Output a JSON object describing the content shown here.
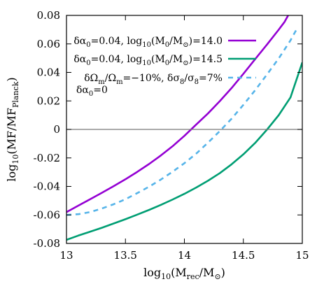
{
  "chart_data": {
    "type": "line",
    "xlim": [
      13,
      15
    ],
    "ylim": [
      -0.08,
      0.08
    ],
    "x_ticks": [
      13,
      13.5,
      14,
      14.5,
      15
    ],
    "x_tick_labels": [
      "13",
      "13.5",
      "14",
      "14.5",
      "15"
    ],
    "y_ticks": [
      -0.08,
      -0.06,
      -0.04,
      -0.02,
      0,
      0.02,
      0.04,
      0.06,
      0.08
    ],
    "y_tick_labels": [
      "-0.08",
      "-0.06",
      "-0.04",
      "-0.02",
      "0",
      "0.02",
      "0.04",
      "0.06",
      "0.08"
    ],
    "reference_line_y": 0,
    "grid": false,
    "legend_position": "top-right",
    "series": [
      {
        "legend_parts": [
          [
            "δα",
            ""
          ],
          [
            "0",
            "sub"
          ],
          [
            "=0.04, log",
            ""
          ],
          [
            "10",
            "sub"
          ],
          [
            "(M",
            ""
          ],
          [
            "0",
            "sub"
          ],
          [
            "/M",
            ""
          ],
          [
            "⊙",
            "sub"
          ],
          [
            ")=14.0",
            ""
          ]
        ],
        "color": "#9400d3",
        "dash": "solid",
        "x": [
          13.0,
          13.1,
          13.2,
          13.3,
          13.4,
          13.5,
          13.6,
          13.7,
          13.8,
          13.9,
          14.0,
          14.1,
          14.2,
          14.3,
          14.4,
          14.5,
          14.6,
          14.7,
          14.8,
          14.85,
          14.88
        ],
        "y": [
          -0.058,
          -0.0535,
          -0.049,
          -0.0445,
          -0.0398,
          -0.035,
          -0.0298,
          -0.0243,
          -0.0183,
          -0.0118,
          -0.0045,
          0.0034,
          0.0112,
          0.0198,
          0.029,
          0.039,
          0.0493,
          0.0595,
          0.07,
          0.0755,
          0.08
        ]
      },
      {
        "legend_parts": [
          [
            "δα",
            ""
          ],
          [
            "0",
            "sub"
          ],
          [
            "=0.04, log",
            ""
          ],
          [
            "10",
            "sub"
          ],
          [
            "(M",
            ""
          ],
          [
            "0",
            "sub"
          ],
          [
            "/M",
            ""
          ],
          [
            "⊙",
            "sub"
          ],
          [
            ")=14.5",
            ""
          ]
        ],
        "color": "#009e73",
        "dash": "solid",
        "x": [
          13.0,
          13.1,
          13.2,
          13.3,
          13.4,
          13.5,
          13.6,
          13.7,
          13.8,
          13.9,
          14.0,
          14.1,
          14.2,
          14.3,
          14.4,
          14.5,
          14.6,
          14.7,
          14.8,
          14.9,
          15.0
        ],
        "y": [
          -0.0775,
          -0.0745,
          -0.0718,
          -0.069,
          -0.066,
          -0.063,
          -0.0598,
          -0.0565,
          -0.053,
          -0.0492,
          -0.0452,
          -0.0408,
          -0.036,
          -0.0307,
          -0.0245,
          -0.0175,
          -0.0095,
          -0.0002,
          0.01,
          0.0225,
          0.047
        ]
      },
      {
        "legend_parts": [
          [
            "δΩ",
            ""
          ],
          [
            "m",
            "sub"
          ],
          [
            "/Ω",
            ""
          ],
          [
            "m",
            "sub"
          ],
          [
            "=−10%, δσ",
            ""
          ],
          [
            "8",
            "sub"
          ],
          [
            "/σ",
            ""
          ],
          [
            "8",
            "sub"
          ],
          [
            "=7%",
            ""
          ]
        ],
        "legend_line2": "δα₀=0",
        "color": "#56b4e9",
        "dash": "dashed",
        "x": [
          13.0,
          13.1,
          13.2,
          13.3,
          13.4,
          13.5,
          13.6,
          13.7,
          13.8,
          13.9,
          14.0,
          14.1,
          14.2,
          14.3,
          14.4,
          14.5,
          14.6,
          14.7,
          14.8,
          14.9,
          14.95
        ],
        "y": [
          -0.06,
          -0.0595,
          -0.058,
          -0.0555,
          -0.0525,
          -0.049,
          -0.0447,
          -0.0402,
          -0.0352,
          -0.0297,
          -0.0237,
          -0.017,
          -0.0093,
          -0.0012,
          0.0075,
          0.0172,
          0.0275,
          0.0385,
          0.0498,
          0.0625,
          0.07
        ]
      }
    ]
  }
}
